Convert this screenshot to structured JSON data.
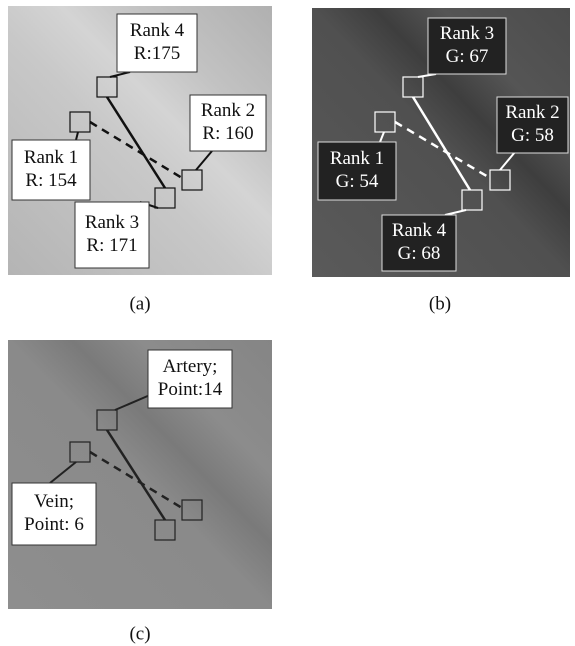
{
  "panels": [
    {
      "caption": "(a)",
      "labels": [
        {
          "lines": [
            "Rank 4",
            "R:175"
          ]
        },
        {
          "lines": [
            "Rank 2",
            "R: 160"
          ]
        },
        {
          "lines": [
            "Rank 1",
            "R: 154"
          ]
        },
        {
          "lines": [
            "Rank 3",
            "R: 171"
          ]
        }
      ]
    },
    {
      "caption": "(b)",
      "labels": [
        {
          "lines": [
            "Rank 3",
            "G: 67"
          ]
        },
        {
          "lines": [
            "Rank 2",
            "G: 58"
          ]
        },
        {
          "lines": [
            "Rank 1",
            "G: 54"
          ]
        },
        {
          "lines": [
            "Rank 4",
            "G: 68"
          ]
        }
      ]
    },
    {
      "caption": "(c)",
      "labels": [
        {
          "lines": [
            "Artery;",
            "Point:14"
          ]
        },
        {
          "lines": [
            "Vein;",
            "Point: 6"
          ]
        }
      ]
    }
  ]
}
